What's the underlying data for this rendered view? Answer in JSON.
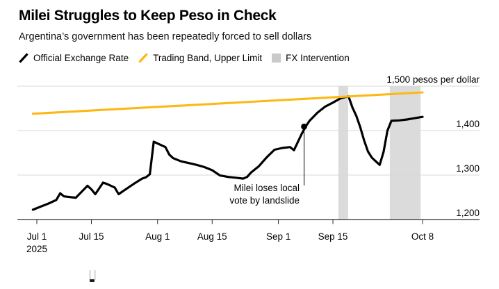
{
  "header": {
    "title": "Milei Struggles to Keep Peso in Check",
    "subtitle": "Argentina’s government has been repeatedly forced to sell dollars"
  },
  "legend": {
    "items": [
      {
        "label": "Official Exchange Rate",
        "swatch": "black-slash"
      },
      {
        "label": "Trading Band, Upper Limit",
        "swatch": "yellow-slash"
      },
      {
        "label": "FX Intervention",
        "swatch": "gray-square"
      }
    ]
  },
  "colors": {
    "official_line": "#000000",
    "trading_band_yellow": "#FDB813",
    "fx_band_gray": "#DBDBDB",
    "legend_swatch_gray": "#C9C9C9",
    "gridline": "#D9D9D9",
    "axis_baseline": "#2B2B2B",
    "background": "#FFFFFF"
  },
  "chart_data": {
    "type": "line",
    "ylabel": "pesos per dollar",
    "x_range": [
      "Jun 30, 2025",
      "Oct 8, 2025"
    ],
    "ylim": [
      1190,
      1510
    ],
    "grid": "horizontal",
    "legend_position": "top",
    "x_unit_note": "day index 0 = Jul 1, 2025",
    "series": [
      {
        "name": "Official Exchange Rate",
        "color_key": "official_line",
        "points": [
          [
            -1,
            1222
          ],
          [
            1,
            1229
          ],
          [
            3,
            1236
          ],
          [
            5,
            1244
          ],
          [
            6,
            1259
          ],
          [
            7,
            1252
          ],
          [
            9,
            1250
          ],
          [
            10,
            1249
          ],
          [
            13,
            1276
          ],
          [
            14,
            1268
          ],
          [
            15,
            1257
          ],
          [
            17,
            1283
          ],
          [
            18,
            1280
          ],
          [
            20,
            1272
          ],
          [
            21,
            1257
          ],
          [
            23,
            1269
          ],
          [
            25,
            1281
          ],
          [
            27,
            1292
          ],
          [
            28,
            1295
          ],
          [
            29,
            1302
          ],
          [
            30,
            1375
          ],
          [
            31,
            1371
          ],
          [
            33,
            1363
          ],
          [
            34,
            1346
          ],
          [
            35,
            1338
          ],
          [
            37,
            1331
          ],
          [
            39,
            1327
          ],
          [
            41,
            1323
          ],
          [
            43,
            1318
          ],
          [
            45,
            1311
          ],
          [
            47,
            1299
          ],
          [
            49,
            1296
          ],
          [
            51,
            1294
          ],
          [
            53,
            1292
          ],
          [
            54,
            1296
          ],
          [
            55,
            1306
          ],
          [
            57,
            1320
          ],
          [
            59,
            1340
          ],
          [
            61,
            1357
          ],
          [
            63,
            1361
          ],
          [
            65,
            1363
          ],
          [
            66,
            1356
          ],
          [
            68,
            1393
          ],
          [
            69,
            1409
          ],
          [
            70,
            1422
          ],
          [
            72,
            1440
          ],
          [
            74,
            1454
          ],
          [
            76,
            1463
          ],
          [
            78,
            1473
          ],
          [
            80,
            1477
          ],
          [
            81,
            1452
          ],
          [
            82,
            1433
          ],
          [
            83,
            1408
          ],
          [
            84,
            1378
          ],
          [
            85,
            1353
          ],
          [
            86,
            1339
          ],
          [
            87,
            1331
          ],
          [
            88,
            1323
          ],
          [
            89,
            1352
          ],
          [
            90,
            1400
          ],
          [
            91,
            1422
          ],
          [
            93,
            1423
          ],
          [
            95,
            1425
          ],
          [
            97,
            1428
          ],
          [
            99,
            1431
          ]
        ]
      },
      {
        "name": "Trading Band, Upper Limit",
        "color_key": "trading_band_yellow",
        "points": [
          [
            -1,
            1438
          ],
          [
            99,
            1486
          ]
        ]
      }
    ],
    "fx_interventions": [
      {
        "label": "Sep 17 - Sep 19",
        "from_day": 77.4,
        "to_day": 79.9
      },
      {
        "label": "Sep 30 - Oct 8",
        "from_day": 90.6,
        "to_day": 98.5
      }
    ],
    "x_ticks": [
      {
        "d": 0,
        "label": "Jul 1",
        "sublabel": "2025"
      },
      {
        "d": 14,
        "label": "Jul 15"
      },
      {
        "d": 31,
        "label": "Aug 1"
      },
      {
        "d": 45,
        "label": "Aug 15"
      },
      {
        "d": 62,
        "label": "Sep 1"
      },
      {
        "d": 76,
        "label": "Sep 15"
      },
      {
        "d": 99,
        "label": "Oct 8"
      }
    ],
    "y_ticks": [
      {
        "v": 1200,
        "label": "1,200"
      },
      {
        "v": 1300,
        "label": "1,300"
      },
      {
        "v": 1400,
        "label": "1,400"
      },
      {
        "v": 1500,
        "label": "1,500 pesos per dollar"
      }
    ],
    "annotation": {
      "line1": "Milei loses local",
      "line2": "vote by landslide",
      "day": 68.6,
      "value": 1409
    }
  }
}
